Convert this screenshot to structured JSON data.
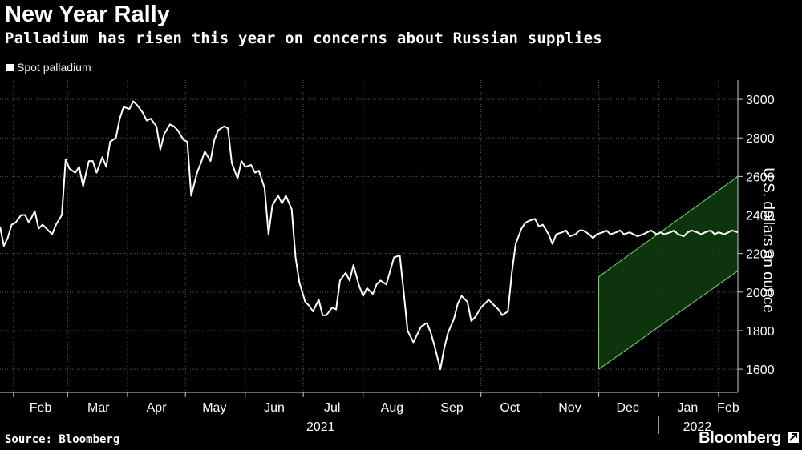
{
  "header": {
    "title": "New Year Rally",
    "subtitle": "Palladium has risen this year on concerns about Russian supplies"
  },
  "footer": {
    "source": "Source: Bloomberg",
    "brand": "Bloomberg"
  },
  "colors": {
    "background": "#000000",
    "line": "#ffffff",
    "channel_fill": "#0f3a0f",
    "channel_edge": "#7fd97f",
    "grid": "#555555"
  },
  "chart_data": {
    "type": "line",
    "title": "New Year Rally",
    "subtitle": "Palladium has risen this year on concerns about Russian supplies",
    "ylabel": "U.S. dollars an ounce",
    "ylim": [
      1480,
      3100
    ],
    "y_ticks": [
      1600,
      1800,
      2000,
      2200,
      2400,
      2600,
      2800,
      3000
    ],
    "x_start": "2021-01-25",
    "x_end": "2022-02-11",
    "x_month_labels": [
      "Feb",
      "Mar",
      "Apr",
      "May",
      "Jun",
      "Jul",
      "Aug",
      "Sep",
      "Oct",
      "Nov",
      "Dec",
      "Jan",
      "Feb"
    ],
    "x_year_labels": [
      "2021",
      "2022"
    ],
    "grid": true,
    "legend": "top-left",
    "series": [
      {
        "name": "Spot palladium",
        "x_day": [
          0,
          2,
          4,
          6,
          8,
          11,
          13,
          15,
          18,
          20,
          22,
          25,
          27,
          29,
          32,
          34,
          36,
          39,
          41,
          43,
          46,
          48,
          50,
          53,
          55,
          57,
          60,
          62,
          64,
          67,
          69,
          71,
          74,
          76,
          78,
          81,
          83,
          85,
          88,
          90,
          92,
          95,
          97,
          99,
          102,
          104,
          106,
          109,
          111,
          113,
          116,
          118,
          120,
          123,
          125,
          127,
          130,
          132,
          134,
          137,
          139,
          141,
          144,
          146,
          148,
          151,
          153,
          155,
          158,
          160,
          162,
          165,
          167,
          169,
          172,
          174,
          176,
          179,
          181,
          183,
          186,
          188,
          190,
          193,
          195,
          197,
          200,
          202,
          204,
          207,
          209,
          211,
          214,
          216,
          218,
          221,
          223,
          225,
          228,
          230,
          232,
          235,
          237,
          239,
          242,
          244,
          246,
          249,
          251,
          253,
          256,
          258,
          260,
          263,
          265,
          267,
          270,
          272,
          274,
          277,
          279,
          281,
          284,
          286,
          288,
          291,
          293,
          295,
          298,
          300,
          302,
          305,
          307,
          309,
          312,
          314,
          316,
          319,
          321,
          323,
          326,
          328,
          330,
          333,
          335,
          337,
          340,
          342,
          344,
          347,
          349,
          351,
          354,
          356,
          358,
          361,
          363,
          365,
          368,
          370,
          372,
          375,
          377,
          379,
          382
        ],
        "values": [
          2340,
          2240,
          2280,
          2350,
          2360,
          2400,
          2400,
          2360,
          2420,
          2330,
          2350,
          2320,
          2300,
          2350,
          2400,
          2690,
          2640,
          2620,
          2650,
          2550,
          2680,
          2680,
          2620,
          2700,
          2650,
          2780,
          2800,
          2900,
          2960,
          2950,
          2990,
          2970,
          2930,
          2890,
          2900,
          2860,
          2740,
          2820,
          2870,
          2860,
          2840,
          2790,
          2780,
          2500,
          2620,
          2670,
          2730,
          2680,
          2790,
          2840,
          2860,
          2850,
          2670,
          2590,
          2680,
          2650,
          2660,
          2620,
          2630,
          2540,
          2300,
          2450,
          2500,
          2460,
          2500,
          2430,
          2180,
          2050,
          1950,
          1930,
          1900,
          1960,
          1880,
          1880,
          1920,
          1910,
          2060,
          2100,
          2060,
          2140,
          2030,
          1980,
          2020,
          1990,
          2040,
          2060,
          2040,
          2110,
          2180,
          2190,
          2000,
          1800,
          1740,
          1780,
          1820,
          1840,
          1790,
          1720,
          1600,
          1710,
          1790,
          1860,
          1940,
          1980,
          1950,
          1850,
          1870,
          1920,
          1940,
          1960,
          1930,
          1910,
          1880,
          1900,
          2100,
          2250,
          2330,
          2360,
          2370,
          2380,
          2340,
          2350,
          2300,
          2250,
          2300,
          2310,
          2320,
          2290,
          2300,
          2320,
          2320,
          2300,
          2280,
          2300,
          2310,
          2320,
          2300,
          2310,
          2320,
          2300,
          2310,
          2300,
          2290,
          2300,
          2310,
          2320,
          2300,
          2310,
          2300,
          2310,
          2320,
          2300,
          2290,
          2310,
          2320,
          2310,
          2300,
          2310,
          2320,
          2300,
          2310,
          2300,
          2310,
          2320,
          2310
        ]
      }
    ],
    "channel": {
      "x_day_start": 310,
      "x_day_end": 382,
      "lower_start": 1600,
      "lower_end": 2110,
      "upper_start": 2080,
      "upper_end": 2600
    }
  }
}
